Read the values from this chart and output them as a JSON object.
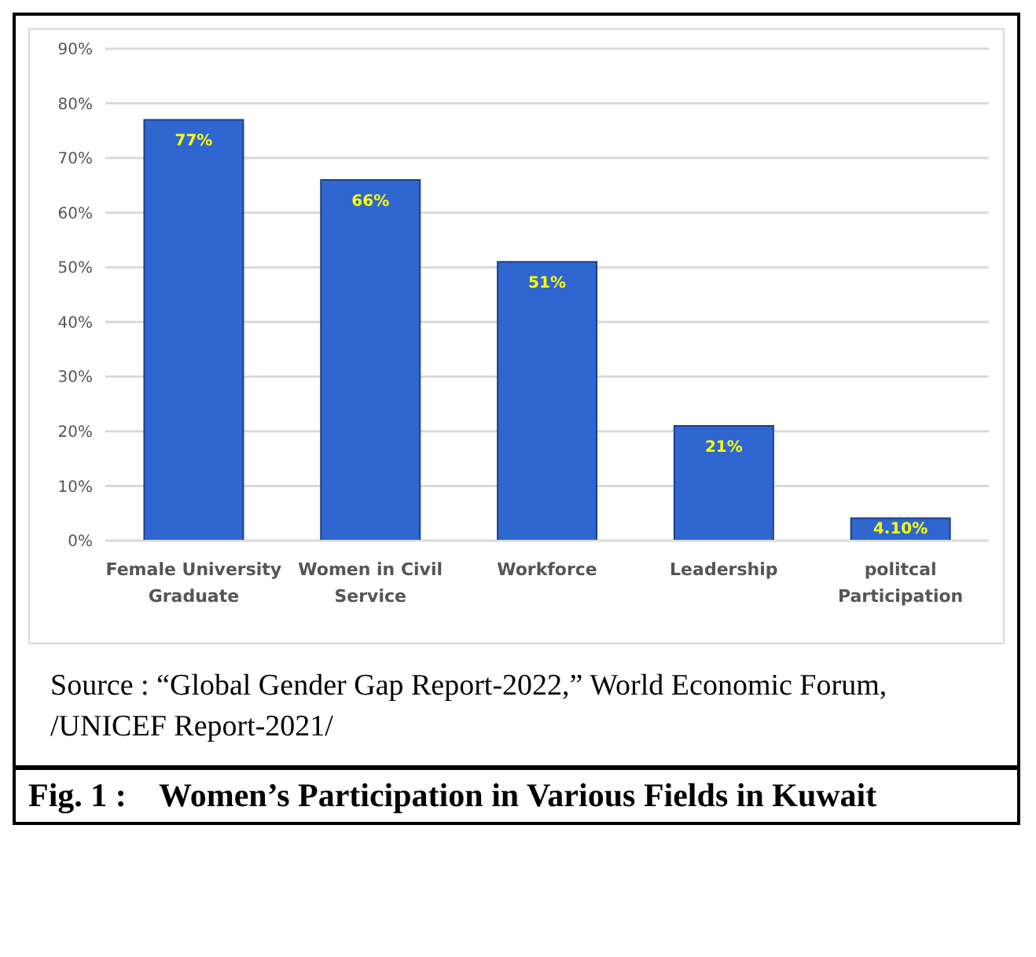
{
  "chart_data": {
    "type": "bar",
    "title": "Fig. 1 :    Women’s Participation in Various Fields in Kuwait",
    "annotations": [
      "Source : “Global Gender Gap Report-2022,” World Economic Forum, /UNICEF Report-2021/"
    ],
    "categories": [
      "Female University Graduate",
      "Women in Civil Service",
      "Workforce",
      "Leadership",
      "politcal Participation"
    ],
    "values": [
      77,
      66,
      51,
      21,
      4.1
    ],
    "value_labels": [
      "77%",
      "66%",
      "51%",
      "21%",
      "4.10%"
    ],
    "color": "#2f66d0",
    "ylim": [
      0,
      90
    ],
    "yticks": [
      {
        "value": 0,
        "label": "0%"
      },
      {
        "value": 10,
        "label": "10%"
      },
      {
        "value": 20,
        "label": "20%"
      },
      {
        "value": 30,
        "label": "30%"
      },
      {
        "value": 40,
        "label": "40%"
      },
      {
        "value": 50,
        "label": "50%"
      },
      {
        "value": 60,
        "label": "60%"
      },
      {
        "value": 70,
        "label": "70%"
      },
      {
        "value": 80,
        "label": "80%"
      },
      {
        "value": 90,
        "label": "90%"
      }
    ],
    "grid": "y"
  }
}
